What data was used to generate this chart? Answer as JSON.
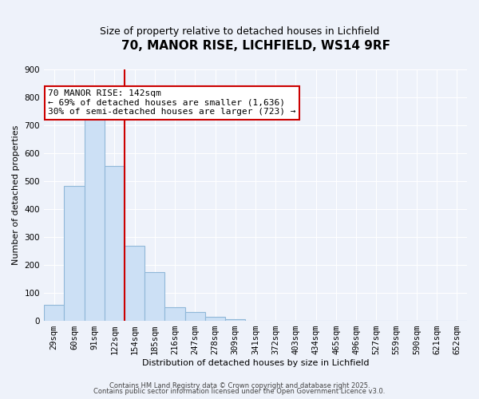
{
  "title": "70, MANOR RISE, LICHFIELD, WS14 9RF",
  "subtitle": "Size of property relative to detached houses in Lichfield",
  "xlabel": "Distribution of detached houses by size in Lichfield",
  "ylabel": "Number of detached properties",
  "bar_values": [
    57,
    483,
    730,
    553,
    270,
    175,
    48,
    32,
    14,
    5,
    0,
    0,
    0,
    0,
    0,
    0,
    0,
    0,
    0,
    0,
    0
  ],
  "categories": [
    "29sqm",
    "60sqm",
    "91sqm",
    "122sqm",
    "154sqm",
    "185sqm",
    "216sqm",
    "247sqm",
    "278sqm",
    "309sqm",
    "341sqm",
    "372sqm",
    "403sqm",
    "434sqm",
    "465sqm",
    "496sqm",
    "527sqm",
    "559sqm",
    "590sqm",
    "621sqm",
    "652sqm"
  ],
  "bar_color": "#cce0f5",
  "bar_edge_color": "#90b8d8",
  "vline_x": 3.5,
  "vline_color": "#cc0000",
  "ylim": [
    0,
    900
  ],
  "yticks": [
    0,
    100,
    200,
    300,
    400,
    500,
    600,
    700,
    800,
    900
  ],
  "annotation_title": "70 MANOR RISE: 142sqm",
  "annotation_line1": "← 69% of detached houses are smaller (1,636)",
  "annotation_line2": "30% of semi-detached houses are larger (723) →",
  "annotation_box_color": "#ffffff",
  "annotation_box_edge": "#cc0000",
  "background_color": "#eef2fa",
  "grid_color": "#ffffff",
  "footer1": "Contains HM Land Registry data © Crown copyright and database right 2025.",
  "footer2": "Contains public sector information licensed under the Open Government Licence v3.0.",
  "title_fontsize": 11,
  "subtitle_fontsize": 9,
  "axis_label_fontsize": 8,
  "tick_fontsize": 7.5,
  "annotation_fontsize": 8
}
